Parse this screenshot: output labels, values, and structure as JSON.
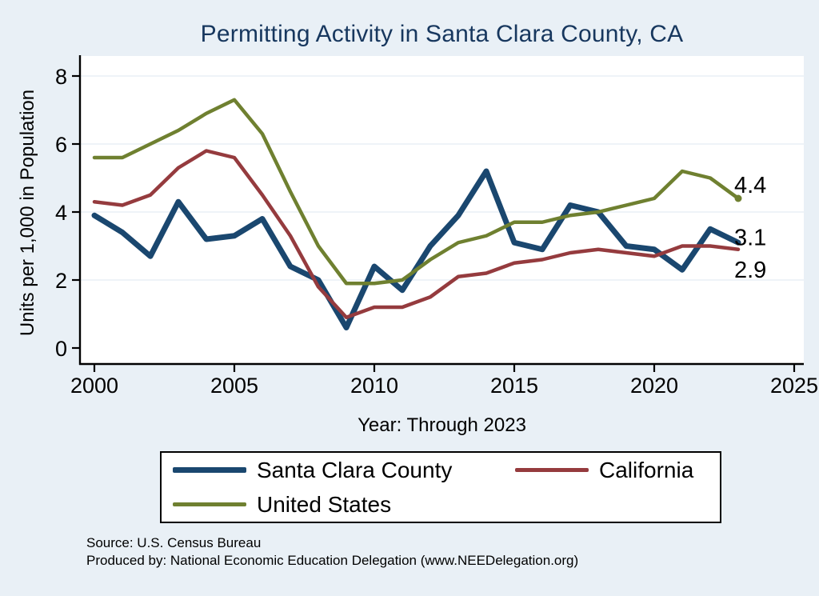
{
  "title": "Permitting Activity in Santa Clara County, CA",
  "chart_data": {
    "type": "line",
    "title": "Permitting Activity in Santa Clara County, CA",
    "xlabel": "Year: Through 2023",
    "ylabel": "Units per 1,000 in Population",
    "xlim": [
      2000,
      2025
    ],
    "ylim": [
      0,
      8
    ],
    "xticks": [
      2000,
      2005,
      2010,
      2015,
      2020,
      2025
    ],
    "yticks": [
      0,
      2,
      4,
      6,
      8
    ],
    "grid": true,
    "legend_position": "bottom",
    "x": [
      2000,
      2001,
      2002,
      2003,
      2004,
      2005,
      2006,
      2007,
      2008,
      2009,
      2010,
      2011,
      2012,
      2013,
      2014,
      2015,
      2016,
      2017,
      2018,
      2019,
      2020,
      2021,
      2022,
      2023
    ],
    "series": [
      {
        "name": "Santa Clara County",
        "color": "#1a476f",
        "width": 7,
        "end_label": "3.1",
        "end_label_dy": -6,
        "end_marker": false,
        "values": [
          3.9,
          3.4,
          2.7,
          4.3,
          3.2,
          3.3,
          3.8,
          2.4,
          2.0,
          0.6,
          2.4,
          1.7,
          3.0,
          3.9,
          5.2,
          3.1,
          2.9,
          4.2,
          4.0,
          3.0,
          2.9,
          2.3,
          3.5,
          3.1
        ]
      },
      {
        "name": "California",
        "color": "#953b3e",
        "width": 4.5,
        "end_label": "2.9",
        "end_label_dy": 26,
        "end_marker": false,
        "values": [
          4.3,
          4.2,
          4.5,
          5.3,
          5.8,
          5.6,
          4.5,
          3.3,
          1.8,
          0.9,
          1.2,
          1.2,
          1.5,
          2.1,
          2.2,
          2.5,
          2.6,
          2.8,
          2.9,
          2.8,
          2.7,
          3.0,
          3.0,
          2.9
        ]
      },
      {
        "name": "United States",
        "color": "#6f8030",
        "width": 4.5,
        "end_label": "4.4",
        "end_label_dy": -16,
        "end_marker": true,
        "values": [
          5.6,
          5.6,
          6.0,
          6.4,
          6.9,
          7.3,
          6.3,
          4.6,
          3.0,
          1.9,
          1.9,
          2.0,
          2.6,
          3.1,
          3.3,
          3.7,
          3.7,
          3.9,
          4.0,
          4.2,
          4.4,
          5.2,
          5.0,
          4.4
        ]
      }
    ]
  },
  "footer": {
    "source": "Source: U.S. Census Bureau",
    "produced_by": "Produced by: National Economic Education Delegation (www.NEEDelegation.org)"
  },
  "colors": {
    "background": "#e9f0f6",
    "plot_background": "#ffffff",
    "title": "#17375e",
    "axis": "#000000",
    "gridline": "#e3ecf3"
  }
}
